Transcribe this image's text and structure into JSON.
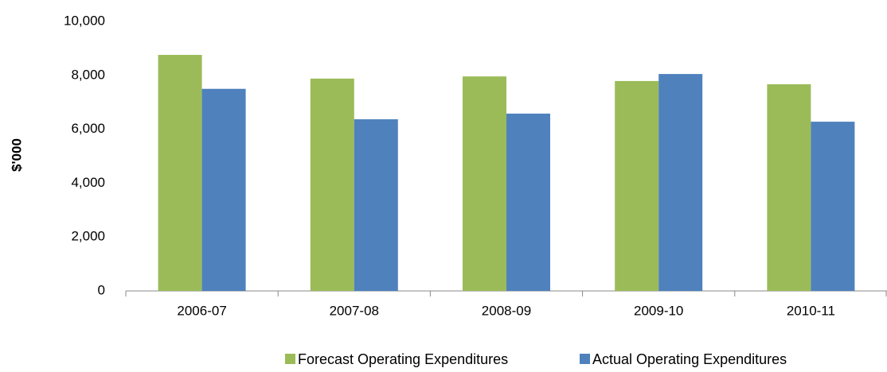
{
  "chart_data": {
    "type": "bar",
    "y_label": "$'000",
    "categories": [
      "2006-07",
      "2007-08",
      "2008-09",
      "2009-10",
      "2010-11"
    ],
    "series": [
      {
        "name": "Forecast Operating Expenditures",
        "color": "#9bbb59",
        "values": [
          8760,
          7880,
          7960,
          7790,
          7670
        ]
      },
      {
        "name": "Actual Operating Expenditures",
        "color": "#4f81bd",
        "values": [
          7500,
          6370,
          6580,
          8050,
          6280
        ]
      }
    ],
    "ylim": [
      0,
      10000
    ],
    "yticks": [
      0,
      {
        "value": 2000,
        "label": "2,000"
      },
      {
        "value": 4000,
        "label": "4,000"
      },
      {
        "value": 6000,
        "label": "6,000"
      },
      {
        "value": 8000,
        "label": "8,000"
      },
      {
        "value": 10000,
        "label": "10,000"
      }
    ],
    "grid": false,
    "legend": "bottom"
  }
}
